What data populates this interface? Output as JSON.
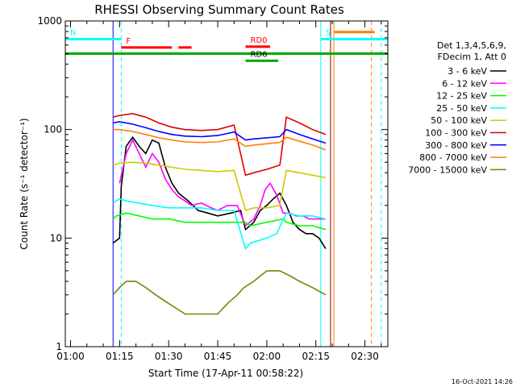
{
  "chart_data": {
    "type": "line",
    "title": "RHESSI Observing Summary Count Rates",
    "xlabel": "Start Time (17-Apr-11 00:58:22)",
    "ylabel": "Count Rate (s⁻¹ detector⁻¹)",
    "x_unit": "minutes after 01:00 UT",
    "xlim": [
      -1.6,
      97
    ],
    "ylim": [
      1,
      1000
    ],
    "y_scale": "log",
    "x_ticks": [
      {
        "t": 0,
        "label": "01:00"
      },
      {
        "t": 15,
        "label": "01:15"
      },
      {
        "t": 30,
        "label": "01:30"
      },
      {
        "t": 45,
        "label": "01:45"
      },
      {
        "t": 60,
        "label": "02:00"
      },
      {
        "t": 75,
        "label": "02:15"
      },
      {
        "t": 90,
        "label": "02:30"
      }
    ],
    "y_ticks": [
      {
        "v": 1,
        "label": "1"
      },
      {
        "v": 10,
        "label": "10"
      },
      {
        "v": 100,
        "label": "100"
      },
      {
        "v": 1000,
        "label": "1000"
      }
    ],
    "legend_header": [
      "Det 1,3,4,5,6,9,",
      "FDecim 1, Att 0"
    ],
    "series": [
      {
        "name": "3 - 6 keV",
        "color": "#000000",
        "x": [
          13,
          15,
          15.5,
          17,
          19,
          21,
          23,
          25,
          27,
          29,
          31,
          33,
          36,
          39,
          42,
          45,
          49,
          52,
          53.5,
          56,
          58,
          60,
          62,
          64,
          66,
          68,
          70,
          72,
          74,
          76,
          78
        ],
        "y": [
          9,
          10,
          30,
          70,
          85,
          70,
          60,
          80,
          75,
          45,
          32,
          26,
          22,
          18,
          17,
          16,
          17,
          18,
          12,
          14,
          18,
          20,
          23,
          26,
          20,
          14,
          12,
          11,
          11,
          10,
          8
        ]
      },
      {
        "name": "6 - 12 keV",
        "color": "#ff00ff",
        "x": [
          15,
          17,
          19,
          21,
          23,
          25,
          27,
          29,
          31,
          33,
          35,
          37,
          40,
          43,
          45,
          48,
          51,
          53.5,
          56,
          58,
          59.5,
          61,
          63,
          65,
          67,
          69,
          71,
          73,
          75,
          77,
          78
        ],
        "y": [
          32,
          60,
          80,
          60,
          45,
          60,
          50,
          35,
          28,
          24,
          22,
          20,
          21,
          19,
          18,
          20,
          20,
          13,
          15,
          20,
          28,
          32,
          25,
          17,
          17,
          16,
          16,
          15,
          15,
          15,
          15
        ]
      },
      {
        "name": "12 - 25 keV",
        "color": "#00ff00",
        "x": [
          13,
          14,
          17,
          21,
          25,
          30,
          35,
          40,
          45,
          50,
          53.5,
          55,
          60,
          65,
          66,
          70,
          74,
          78
        ],
        "y": [
          15,
          16,
          17,
          16,
          15,
          15,
          14,
          14,
          14,
          14,
          14,
          13,
          14,
          15,
          14,
          13,
          13,
          12
        ]
      },
      {
        "name": "25 - 50 keV",
        "color": "#00ffff",
        "x": [
          13,
          15,
          17,
          21,
          25,
          30,
          35,
          40,
          45,
          50,
          53.5,
          55,
          60,
          63,
          66,
          70,
          74,
          78
        ],
        "y": [
          21,
          23,
          22,
          21,
          20,
          19,
          19,
          19,
          18,
          18,
          8,
          9,
          10,
          11,
          17,
          16,
          16,
          15
        ]
      },
      {
        "name": "50 - 100 keV",
        "color": "#cccc00",
        "x": [
          13,
          15,
          19,
          23,
          27,
          31,
          35,
          40,
          45,
          50,
          53.5,
          56,
          60,
          64,
          66,
          70,
          74,
          78
        ],
        "y": [
          47,
          49,
          50,
          49,
          47,
          45,
          43,
          42,
          41,
          42,
          18,
          19,
          19,
          20,
          42,
          40,
          38,
          36
        ]
      },
      {
        "name": "100 - 300 keV",
        "color": "#e00000",
        "x": [
          13,
          15,
          19,
          23,
          27,
          31,
          35,
          40,
          45,
          50,
          53.5,
          56,
          60,
          64,
          66,
          70,
          74,
          78
        ],
        "y": [
          130,
          135,
          140,
          130,
          115,
          105,
          100,
          98,
          100,
          110,
          38,
          40,
          43,
          47,
          130,
          115,
          100,
          90
        ]
      },
      {
        "name": "300 - 800 keV",
        "color": "#0000ff",
        "x": [
          13,
          15,
          19,
          23,
          27,
          31,
          35,
          40,
          45,
          50,
          53.5,
          56,
          60,
          64,
          66,
          70,
          74,
          78
        ],
        "y": [
          115,
          118,
          112,
          104,
          96,
          90,
          87,
          86,
          88,
          95,
          80,
          82,
          84,
          86,
          100,
          90,
          82,
          75
        ]
      },
      {
        "name": "800 - 7000 keV",
        "color": "#ff8000",
        "x": [
          13,
          15,
          19,
          23,
          27,
          31,
          35,
          40,
          45,
          50,
          53.5,
          56,
          60,
          64,
          66,
          70,
          74,
          78
        ],
        "y": [
          100,
          100,
          96,
          90,
          84,
          80,
          77,
          76,
          77,
          82,
          70,
          72,
          74,
          76,
          85,
          78,
          72,
          65
        ]
      },
      {
        "name": "7000 - 15000 keV",
        "color": "#808000",
        "x": [
          13,
          15,
          17,
          20,
          23,
          26,
          30,
          35,
          40,
          45,
          48,
          51,
          53,
          56,
          60,
          64,
          67,
          70,
          74,
          78
        ],
        "y": [
          3,
          3.5,
          4,
          4,
          3.5,
          3,
          2.5,
          2,
          2,
          2,
          2.5,
          3,
          3.5,
          4,
          5,
          5,
          4.5,
          4,
          3.5,
          3
        ]
      }
    ],
    "bars": [
      {
        "label": "N",
        "color": "#00ffff",
        "x_start": -1.6,
        "x_end": 15.5,
        "y": 680
      },
      {
        "label": "F",
        "color": "#ff0000",
        "x_start": 15.5,
        "x_end": 31,
        "y": 570
      },
      {
        "label": "",
        "color": "#ff0000",
        "x_start": 33,
        "x_end": 37,
        "y": 570
      },
      {
        "label": "",
        "color": "#00aa00",
        "x_start": -1.6,
        "x_end": 97,
        "y": 500
      },
      {
        "label": "RD6",
        "color": "#00aa00",
        "x_start": 53.5,
        "x_end": 63.5,
        "y": 430
      },
      {
        "label": "RD0",
        "color": "#ff0000",
        "x_start": 53.5,
        "x_end": 61,
        "y": 580
      },
      {
        "label": "S",
        "color": "#00ffff",
        "x_start": 76.5,
        "x_end": 97,
        "y": 680
      },
      {
        "label": "",
        "color": "#ff8000",
        "x_start": 80.5,
        "x_end": 93,
        "y": 790
      }
    ],
    "vlines": [
      {
        "t": 13,
        "color": "#0000ff",
        "style": "solid"
      },
      {
        "t": 15.5,
        "color": "#00ffff",
        "style": "dashed"
      },
      {
        "t": 76.5,
        "color": "#00ffff",
        "style": "solid"
      },
      {
        "t": 80.5,
        "color": "#ff8000",
        "style": "solid"
      },
      {
        "t": 79.5,
        "color": "#800000",
        "style": "solid"
      },
      {
        "t": 92,
        "color": "#ff8000",
        "style": "dashed"
      },
      {
        "t": 95,
        "color": "#00ffff",
        "style": "dashed"
      }
    ],
    "legend_position": "right",
    "timestamp": "16-Oct-2021 14:26"
  }
}
